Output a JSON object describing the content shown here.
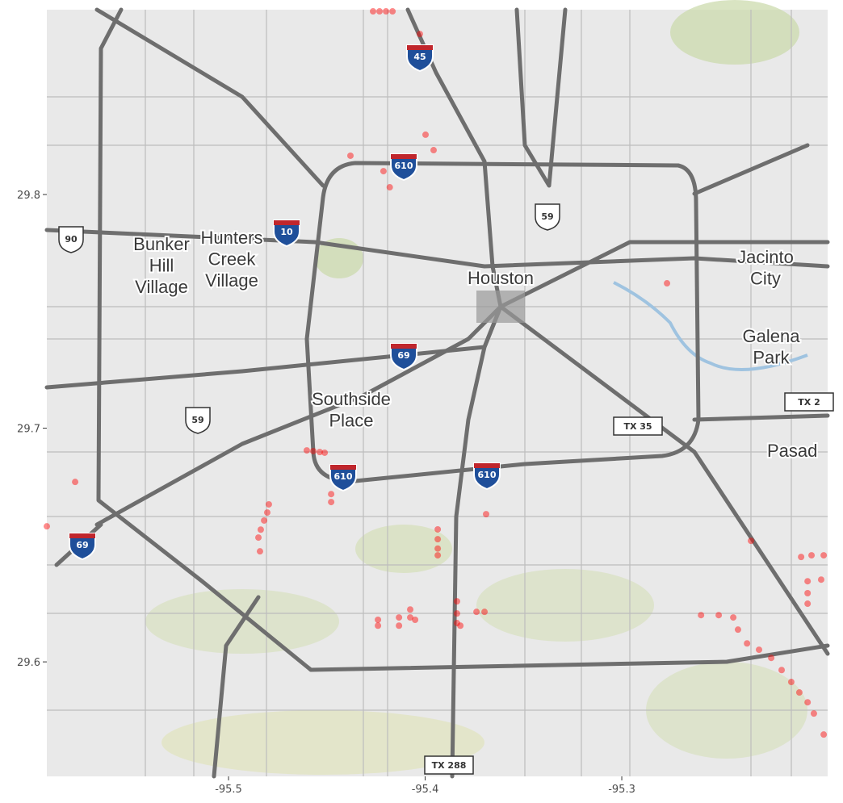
{
  "chart_data": {
    "type": "scatter",
    "xlim": [
      -95.5924,
      -95.1953
    ],
    "ylim": [
      29.551,
      29.8791
    ],
    "xticks": [
      -95.5,
      -95.4,
      -95.3
    ],
    "yticks": [
      29.6,
      29.7,
      29.8
    ],
    "color": "#ff0000",
    "x": [
      -95.4265,
      -95.4232,
      -95.4199,
      -95.4166,
      -95.4027,
      -95.438,
      -95.4212,
      -95.418,
      -95.3957,
      -95.3998,
      -95.277,
      -95.4602,
      -95.4569,
      -95.4536,
      -95.4511,
      -95.4478,
      -95.4478,
      -95.4795,
      -95.4803,
      -95.4819,
      -95.4836,
      -95.4848,
      -95.484,
      -95.578,
      -95.5924,
      -95.3936,
      -95.3936,
      -95.3936,
      -95.3936,
      -95.369,
      -95.4076,
      -95.4076,
      -95.4133,
      -95.4133,
      -95.424,
      -95.424,
      -95.4051,
      -95.3838,
      -95.3838,
      -95.3838,
      -95.3821,
      -95.3739,
      -95.3698,
      -95.2597,
      -95.2507,
      -95.2433,
      -95.2409,
      -95.2363,
      -95.2302,
      -95.224,
      -95.2187,
      -95.2138,
      -95.2097,
      -95.2055,
      -95.2023,
      -95.1973,
      -95.2088,
      -95.2035,
      -95.1973,
      -95.2055,
      -95.2055,
      -95.2055,
      -95.2343,
      -95.1986
    ],
    "values": [
      29.8784,
      29.8784,
      29.8784,
      29.8784,
      29.8687,
      29.8166,
      29.81,
      29.8031,
      29.819,
      29.8256,
      29.762,
      29.6905,
      29.6902,
      29.6898,
      29.6895,
      29.6718,
      29.6684,
      29.6674,
      29.6639,
      29.6605,
      29.6566,
      29.6532,
      29.6473,
      29.677,
      29.658,
      29.6567,
      29.6525,
      29.6485,
      29.6456,
      29.6632,
      29.6224,
      29.619,
      29.619,
      29.6155,
      29.618,
      29.6155,
      29.618,
      29.6259,
      29.6207,
      29.6166,
      29.6155,
      29.6214,
      29.6214,
      29.62,
      29.62,
      29.619,
      29.6138,
      29.6079,
      29.6052,
      29.6017,
      29.5965,
      29.5914,
      29.5869,
      29.5827,
      29.5779,
      29.5689,
      29.6449,
      29.6456,
      29.6456,
      29.6345,
      29.6294,
      29.6249,
      29.6518,
      29.6352
    ]
  },
  "map_labels": {
    "places": [
      "Bunker\nHill\nVillage",
      "Hunters\nCreek\nVillage",
      "Houston",
      "Jacinto\nCity",
      "Galena\nPark",
      "Southside\nPlace",
      "Pasad"
    ],
    "shields": [
      "45",
      "610",
      "10",
      "59",
      "90",
      "69",
      "59",
      "610",
      "610",
      "69",
      "TX 35",
      "TX 288",
      "TX 2"
    ]
  }
}
